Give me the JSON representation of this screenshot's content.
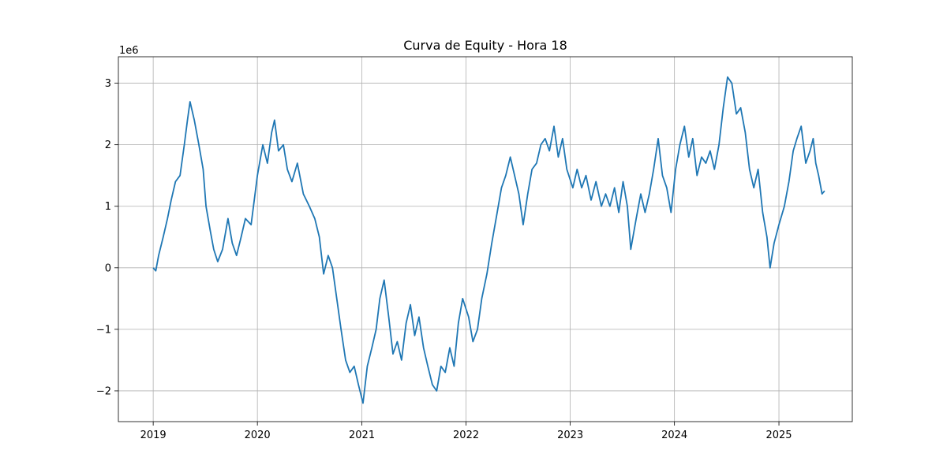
{
  "chart_data": {
    "type": "line",
    "title": "Curva de Equity - Hora 18",
    "xlabel": "",
    "ylabel": "",
    "y_offset_label": "1e6",
    "x_axis_kind": "date",
    "xlim": [
      "2018-09-01",
      "2025-09-15"
    ],
    "ylim": [
      -2.5,
      3.43
    ],
    "y_unit_multiplier": 1000000,
    "grid": true,
    "line_color": "#1f77b4",
    "x_ticks": [
      {
        "date": "2019-01-01",
        "label": "2019"
      },
      {
        "date": "2020-01-01",
        "label": "2020"
      },
      {
        "date": "2021-01-01",
        "label": "2021"
      },
      {
        "date": "2022-01-01",
        "label": "2022"
      },
      {
        "date": "2023-01-01",
        "label": "2023"
      },
      {
        "date": "2024-01-01",
        "label": "2024"
      },
      {
        "date": "2025-01-01",
        "label": "2025"
      }
    ],
    "y_ticks": [
      {
        "value": -2,
        "label": "−2"
      },
      {
        "value": -1,
        "label": "−1"
      },
      {
        "value": 0,
        "label": "0"
      },
      {
        "value": 1,
        "label": "1"
      },
      {
        "value": 2,
        "label": "2"
      },
      {
        "value": 3,
        "label": "3"
      }
    ],
    "series": [
      {
        "points": [
          [
            "2019-01-01",
            0.0
          ],
          [
            "2019-01-10",
            -0.05
          ],
          [
            "2019-01-20",
            0.2
          ],
          [
            "2019-02-05",
            0.5
          ],
          [
            "2019-02-20",
            0.8
          ],
          [
            "2019-03-05",
            1.1
          ],
          [
            "2019-03-20",
            1.4
          ],
          [
            "2019-04-05",
            1.5
          ],
          [
            "2019-04-20",
            2.0
          ],
          [
            "2019-05-01",
            2.4
          ],
          [
            "2019-05-10",
            2.7
          ],
          [
            "2019-05-25",
            2.4
          ],
          [
            "2019-06-10",
            2.0
          ],
          [
            "2019-06-25",
            1.6
          ],
          [
            "2019-07-05",
            1.0
          ],
          [
            "2019-07-20",
            0.6
          ],
          [
            "2019-08-01",
            0.3
          ],
          [
            "2019-08-15",
            0.1
          ],
          [
            "2019-09-01",
            0.3
          ],
          [
            "2019-09-20",
            0.8
          ],
          [
            "2019-10-05",
            0.4
          ],
          [
            "2019-10-20",
            0.2
          ],
          [
            "2019-11-05",
            0.5
          ],
          [
            "2019-11-20",
            0.8
          ],
          [
            "2019-12-10",
            0.7
          ],
          [
            "2020-01-01",
            1.5
          ],
          [
            "2020-01-20",
            2.0
          ],
          [
            "2020-02-05",
            1.7
          ],
          [
            "2020-02-20",
            2.2
          ],
          [
            "2020-03-01",
            2.4
          ],
          [
            "2020-03-15",
            1.9
          ],
          [
            "2020-04-01",
            2.0
          ],
          [
            "2020-04-15",
            1.6
          ],
          [
            "2020-05-01",
            1.4
          ],
          [
            "2020-05-20",
            1.7
          ],
          [
            "2020-06-10",
            1.2
          ],
          [
            "2020-07-01",
            1.0
          ],
          [
            "2020-07-20",
            0.8
          ],
          [
            "2020-08-05",
            0.5
          ],
          [
            "2020-08-20",
            -0.1
          ],
          [
            "2020-09-05",
            0.2
          ],
          [
            "2020-09-20",
            0.0
          ],
          [
            "2020-10-05",
            -0.5
          ],
          [
            "2020-10-20",
            -1.0
          ],
          [
            "2020-11-05",
            -1.5
          ],
          [
            "2020-11-20",
            -1.7
          ],
          [
            "2020-12-05",
            -1.6
          ],
          [
            "2020-12-20",
            -1.9
          ],
          [
            "2021-01-05",
            -2.2
          ],
          [
            "2021-01-20",
            -1.6
          ],
          [
            "2021-02-05",
            -1.3
          ],
          [
            "2021-02-20",
            -1.0
          ],
          [
            "2021-03-05",
            -0.5
          ],
          [
            "2021-03-20",
            -0.2
          ],
          [
            "2021-04-05",
            -0.8
          ],
          [
            "2021-04-20",
            -1.4
          ],
          [
            "2021-05-05",
            -1.2
          ],
          [
            "2021-05-20",
            -1.5
          ],
          [
            "2021-06-05",
            -0.9
          ],
          [
            "2021-06-20",
            -0.6
          ],
          [
            "2021-07-05",
            -1.1
          ],
          [
            "2021-07-20",
            -0.8
          ],
          [
            "2021-08-05",
            -1.3
          ],
          [
            "2021-08-20",
            -1.6
          ],
          [
            "2021-09-05",
            -1.9
          ],
          [
            "2021-09-20",
            -2.0
          ],
          [
            "2021-10-05",
            -1.6
          ],
          [
            "2021-10-20",
            -1.7
          ],
          [
            "2021-11-05",
            -1.3
          ],
          [
            "2021-11-20",
            -1.6
          ],
          [
            "2021-12-05",
            -0.9
          ],
          [
            "2021-12-20",
            -0.5
          ],
          [
            "2022-01-10",
            -0.8
          ],
          [
            "2022-01-25",
            -1.2
          ],
          [
            "2022-02-10",
            -1.0
          ],
          [
            "2022-02-25",
            -0.5
          ],
          [
            "2022-03-15",
            -0.1
          ],
          [
            "2022-04-01",
            0.4
          ],
          [
            "2022-04-20",
            0.9
          ],
          [
            "2022-05-05",
            1.3
          ],
          [
            "2022-05-20",
            1.5
          ],
          [
            "2022-06-05",
            1.8
          ],
          [
            "2022-06-20",
            1.5
          ],
          [
            "2022-07-05",
            1.2
          ],
          [
            "2022-07-20",
            0.7
          ],
          [
            "2022-08-05",
            1.2
          ],
          [
            "2022-08-20",
            1.6
          ],
          [
            "2022-09-05",
            1.7
          ],
          [
            "2022-09-20",
            2.0
          ],
          [
            "2022-10-05",
            2.1
          ],
          [
            "2022-10-20",
            1.9
          ],
          [
            "2022-11-05",
            2.3
          ],
          [
            "2022-11-20",
            1.8
          ],
          [
            "2022-12-05",
            2.1
          ],
          [
            "2022-12-20",
            1.6
          ],
          [
            "2023-01-10",
            1.3
          ],
          [
            "2023-01-25",
            1.6
          ],
          [
            "2023-02-10",
            1.3
          ],
          [
            "2023-02-25",
            1.5
          ],
          [
            "2023-03-15",
            1.1
          ],
          [
            "2023-04-01",
            1.4
          ],
          [
            "2023-04-20",
            1.0
          ],
          [
            "2023-05-05",
            1.2
          ],
          [
            "2023-05-20",
            1.0
          ],
          [
            "2023-06-05",
            1.3
          ],
          [
            "2023-06-20",
            0.9
          ],
          [
            "2023-07-05",
            1.4
          ],
          [
            "2023-07-20",
            1.0
          ],
          [
            "2023-08-01",
            0.3
          ],
          [
            "2023-08-20",
            0.8
          ],
          [
            "2023-09-05",
            1.2
          ],
          [
            "2023-09-20",
            0.9
          ],
          [
            "2023-10-05",
            1.2
          ],
          [
            "2023-10-20",
            1.6
          ],
          [
            "2023-11-05",
            2.1
          ],
          [
            "2023-11-20",
            1.5
          ],
          [
            "2023-12-05",
            1.3
          ],
          [
            "2023-12-20",
            0.9
          ],
          [
            "2024-01-05",
            1.6
          ],
          [
            "2024-01-20",
            2.0
          ],
          [
            "2024-02-05",
            2.3
          ],
          [
            "2024-02-20",
            1.8
          ],
          [
            "2024-03-05",
            2.1
          ],
          [
            "2024-03-20",
            1.5
          ],
          [
            "2024-04-05",
            1.8
          ],
          [
            "2024-04-20",
            1.7
          ],
          [
            "2024-05-05",
            1.9
          ],
          [
            "2024-05-20",
            1.6
          ],
          [
            "2024-06-05",
            2.0
          ],
          [
            "2024-06-20",
            2.6
          ],
          [
            "2024-07-05",
            3.1
          ],
          [
            "2024-07-20",
            3.0
          ],
          [
            "2024-08-05",
            2.5
          ],
          [
            "2024-08-20",
            2.6
          ],
          [
            "2024-09-05",
            2.2
          ],
          [
            "2024-09-20",
            1.6
          ],
          [
            "2024-10-05",
            1.3
          ],
          [
            "2024-10-20",
            1.6
          ],
          [
            "2024-11-05",
            0.9
          ],
          [
            "2024-11-20",
            0.5
          ],
          [
            "2024-12-01",
            0.0
          ],
          [
            "2024-12-15",
            0.4
          ],
          [
            "2025-01-01",
            0.7
          ],
          [
            "2025-01-20",
            1.0
          ],
          [
            "2025-02-05",
            1.4
          ],
          [
            "2025-02-20",
            1.9
          ],
          [
            "2025-03-05",
            2.1
          ],
          [
            "2025-03-20",
            2.3
          ],
          [
            "2025-04-05",
            1.7
          ],
          [
            "2025-04-20",
            1.9
          ],
          [
            "2025-05-01",
            2.1
          ],
          [
            "2025-05-10",
            1.7
          ],
          [
            "2025-05-20",
            1.5
          ],
          [
            "2025-06-01",
            1.2
          ],
          [
            "2025-06-10",
            1.25
          ]
        ]
      }
    ]
  }
}
